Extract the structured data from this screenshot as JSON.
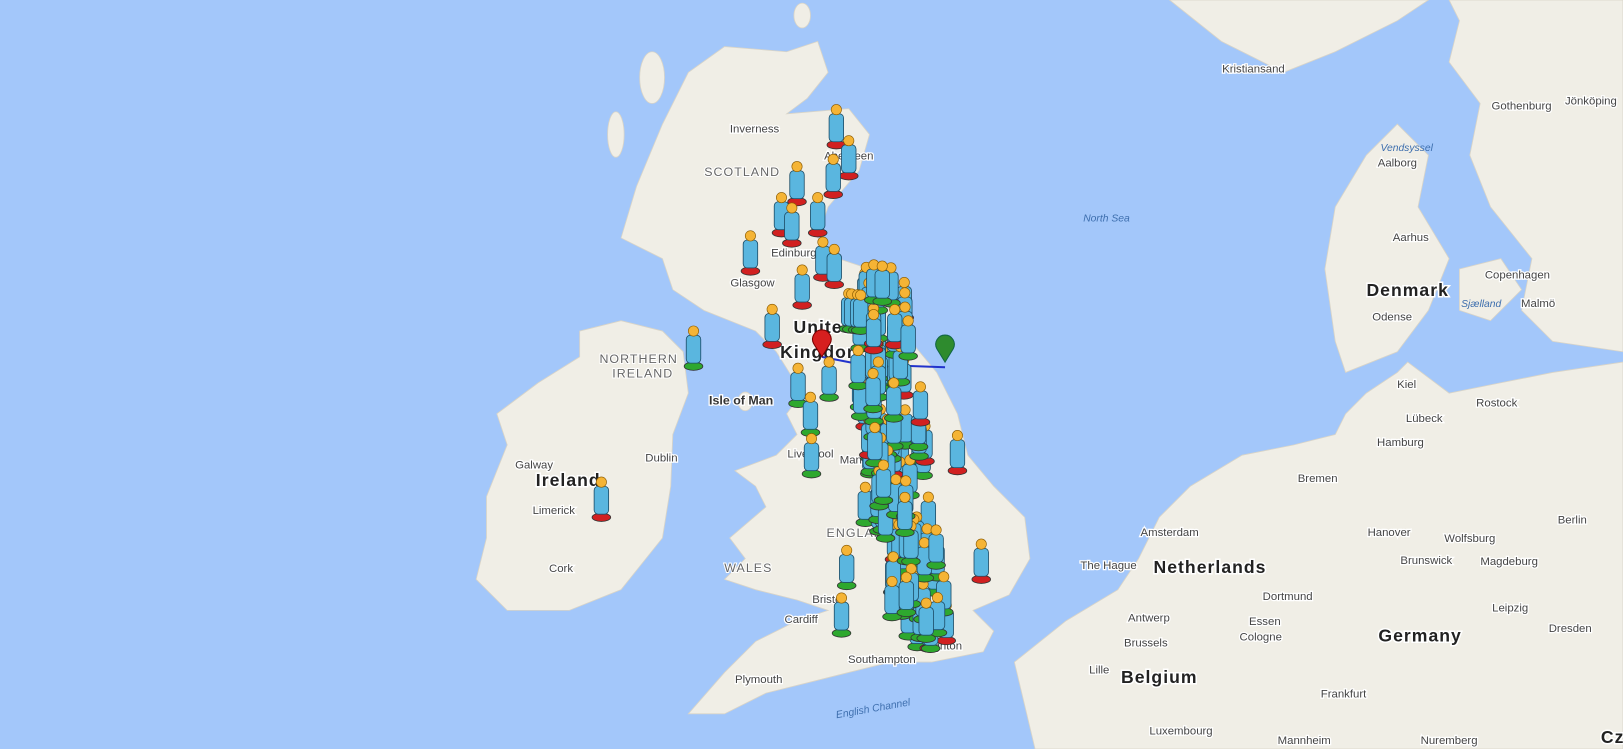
{
  "places": [
    "Kristiansand",
    "Gothenburg",
    "Jönköping",
    "Vendsyssel",
    "Aalborg",
    "North Sea",
    "Aarhus",
    "Denmark",
    "Copenhagen",
    "Sjælland",
    "Malmö",
    "Odense",
    "Kiel",
    "Rostock",
    "Lübeck",
    "Hamburg",
    "Bremen",
    "Amsterdam",
    "Hanover",
    "Wolfsburg",
    "Berlin",
    "The Hague",
    "Netherlands",
    "Brunswick",
    "Magdeburg",
    "Dortmund",
    "Antwerp",
    "Essen",
    "Cologne",
    "Leipzig",
    "Dresden",
    "Germany",
    "Brussels",
    "Lille",
    "Belgium",
    "Frankfurt",
    "Luxembourg",
    "Mannheim",
    "Nuremberg",
    "Cz",
    "Inverness",
    "SCOTLAND",
    "Aberdeen",
    "Edinburgh",
    "Glasgow",
    "United",
    "Kingdom",
    "NORTHERN",
    "IRELAND",
    "Isle of Man",
    "Liverpool",
    "Manchester",
    "Dublin",
    "Galway",
    "Ireland",
    "Limerick",
    "Cork",
    "WALES",
    "ENGLAND",
    "Bristol",
    "Cardiff",
    "Southampton",
    "Brighton",
    "Plymouth",
    "English Channel"
  ]
}
